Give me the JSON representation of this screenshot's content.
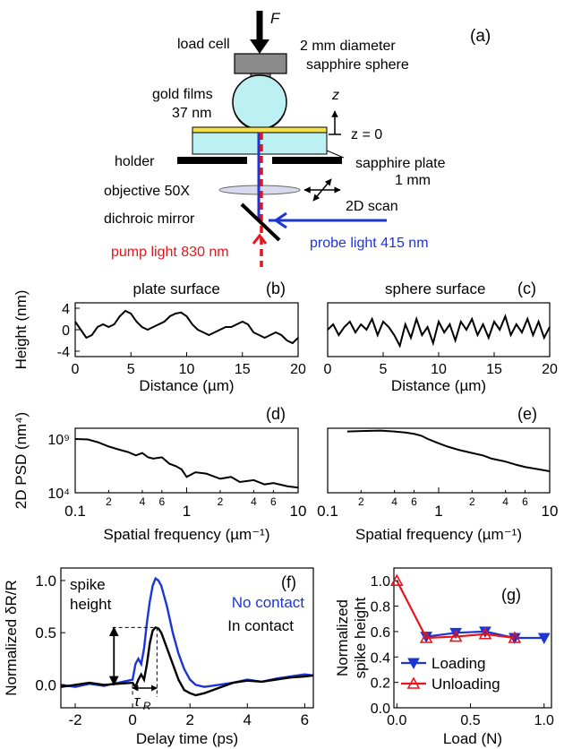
{
  "figure": {
    "panel_a": {
      "label": "(a)",
      "force": "F",
      "load_cell": "load cell",
      "sphere_line1": "2 mm diameter",
      "sphere_line2": "sapphire sphere",
      "gold_line1": "gold films",
      "gold_line2": "37 nm",
      "z_axis": "z",
      "z_zero": "z = 0",
      "holder": "holder",
      "plate_line1": "sapphire plate",
      "plate_line2": "1 mm",
      "objective": "objective 50X",
      "scan": "2D scan",
      "mirror": "dichroic mirror",
      "pump": "pump light  830 nm",
      "probe": "probe light 415 nm",
      "colors": {
        "pump": "#e8141b",
        "probe": "#1c35d6",
        "gold": "#f3e24a",
        "sapphire": "#bdf0f3"
      }
    }
  },
  "chart_data": [
    {
      "panel": "(b)",
      "type": "line",
      "title": "plate surface",
      "xlabel": "Distance (µm)",
      "ylabel": "Height (nm)",
      "xlim": [
        0,
        20
      ],
      "ylim": [
        -5,
        5
      ],
      "xticks": [
        "0",
        "5",
        "10",
        "15",
        "20"
      ],
      "yticks": [
        "4",
        "0",
        "-4"
      ],
      "series": [
        {
          "x": [
            0,
            0.5,
            1,
            1.5,
            2,
            2.5,
            3,
            3.5,
            4,
            4.5,
            5,
            5.5,
            6,
            6.5,
            7,
            7.5,
            8,
            8.5,
            9,
            9.5,
            10,
            10.5,
            11,
            11.5,
            12,
            12.5,
            13,
            13.5,
            14,
            14.5,
            15,
            15.5,
            16,
            16.5,
            17,
            17.5,
            18,
            18.5,
            19,
            19.5,
            20
          ],
          "y": [
            1.5,
            0,
            -1.5,
            -1,
            0.5,
            1,
            0.5,
            1,
            2.5,
            3.5,
            3,
            1.5,
            0.5,
            0,
            0.5,
            1,
            1.5,
            2.5,
            3,
            3.2,
            2.5,
            1,
            0,
            -0.5,
            -1,
            -0.5,
            0,
            0.5,
            0.5,
            1,
            1.5,
            1,
            -0.5,
            -1,
            -1.5,
            -1,
            -0.5,
            -1,
            -2,
            -2.5,
            -1.5
          ]
        }
      ]
    },
    {
      "panel": "(c)",
      "type": "line",
      "title": "sphere surface",
      "xlabel": "Distance (µm)",
      "ylabel": "",
      "xlim": [
        0,
        20
      ],
      "ylim": [
        -5,
        5
      ],
      "xticks": [
        "0",
        "5",
        "10",
        "15",
        "20"
      ],
      "yticks": [],
      "series": [
        {
          "x": [
            0,
            0.5,
            1,
            1.5,
            2,
            2.5,
            3,
            3.5,
            4,
            4.5,
            5,
            5.5,
            6,
            6.5,
            7,
            7.5,
            8,
            8.5,
            9,
            9.5,
            10,
            10.5,
            11,
            11.5,
            12,
            12.5,
            13,
            13.5,
            14,
            14.5,
            15,
            15.5,
            16,
            16.5,
            17,
            17.5,
            18,
            18.5,
            19,
            19.5,
            20
          ],
          "y": [
            0,
            1,
            -1,
            0.5,
            1.5,
            -0.5,
            1,
            0,
            2,
            -1,
            1.5,
            0.5,
            -1,
            -3,
            1,
            -1.5,
            2,
            -1,
            0.5,
            -2.5,
            1.5,
            -0.5,
            1,
            -2,
            1.5,
            0,
            2,
            -1,
            1,
            -1.5,
            1.5,
            0,
            2.5,
            -1,
            1,
            -0.5,
            2,
            -1,
            1.5,
            -1.5,
            0.5
          ]
        }
      ]
    },
    {
      "panel": "(d)",
      "type": "line",
      "title": "",
      "xlabel": "Spatial frequency (µm⁻¹)",
      "ylabel": "2D PSD (nm⁴)",
      "xscale": "log",
      "yscale": "log",
      "xlim": [
        0.1,
        10
      ],
      "ylim": [
        10000,
        10000000000
      ],
      "xticks_major": [
        "0.1",
        "1",
        "10"
      ],
      "xticks_minor": [
        "2",
        "4",
        "6",
        "2",
        "4",
        "6"
      ],
      "yticks": [
        "10⁹",
        "10⁴"
      ],
      "series": [
        {
          "x": [
            0.1,
            0.13,
            0.16,
            0.2,
            0.25,
            0.3,
            0.35,
            0.4,
            0.45,
            0.5,
            0.6,
            0.7,
            0.8,
            0.9,
            1,
            1.2,
            1.5,
            2,
            2.5,
            3,
            4,
            5,
            6,
            8,
            10
          ],
          "y": [
            1000000000,
            900000000,
            500000000,
            200000000,
            100000000,
            60000000,
            30000000,
            50000000,
            20000000,
            15000000,
            20000000,
            5000000,
            3000000,
            1500000,
            300000,
            800000,
            600000,
            200000,
            300000,
            100000,
            150000,
            60000,
            80000,
            40000,
            30000
          ]
        }
      ]
    },
    {
      "panel": "(e)",
      "type": "line",
      "title": "",
      "xlabel": "Spatial frequency (µm⁻¹)",
      "ylabel": "",
      "xscale": "log",
      "yscale": "log",
      "xlim": [
        0.1,
        10
      ],
      "ylim": [
        10000,
        10000000000
      ],
      "xticks_major": [
        "0.1",
        "1",
        "10"
      ],
      "xticks_minor": [
        "2",
        "4",
        "6",
        "2",
        "4",
        "6"
      ],
      "yticks": [],
      "series": [
        {
          "x": [
            0.15,
            0.2,
            0.3,
            0.4,
            0.5,
            0.6,
            0.7,
            0.8,
            1,
            1.2,
            1.5,
            2,
            2.5,
            3,
            4,
            5,
            6,
            8,
            10
          ],
          "y": [
            5000000000,
            5500000000,
            6000000000,
            5000000000,
            4000000000,
            3000000000,
            2000000000,
            1000000000,
            400000000,
            200000000,
            100000000,
            50000000,
            30000000,
            15000000,
            8000000,
            4000000,
            2500000,
            1500000,
            1000000
          ]
        }
      ]
    },
    {
      "panel": "(f)",
      "type": "line",
      "title": "",
      "xlabel": "Delay time (ps)",
      "ylabel": "Normalized δR/R",
      "xlim": [
        -2.5,
        6.3
      ],
      "ylim": [
        -0.22,
        1.12
      ],
      "xticks": [
        "-2",
        "0",
        "2",
        "4",
        "6"
      ],
      "yticks": [
        "0.0",
        "0.5",
        "1.0"
      ],
      "annotations": {
        "spike_height_line1": "spike",
        "spike_height_line2": "height",
        "tau": "τ",
        "tau_sub": "R"
      },
      "series": [
        {
          "name": "No contact",
          "color": "#1c35d6",
          "x": [
            -2.5,
            -2,
            -1.5,
            -1,
            -0.5,
            0,
            0.1,
            0.2,
            0.3,
            0.4,
            0.5,
            0.6,
            0.7,
            0.8,
            0.9,
            1,
            1.2,
            1.4,
            1.6,
            1.8,
            2,
            2.2,
            2.5,
            3,
            3.5,
            4,
            4.5,
            5,
            5.5,
            6,
            6.3
          ],
          "y": [
            0,
            -0.02,
            0.01,
            -0.01,
            0.02,
            0.05,
            0.2,
            0.25,
            0.2,
            0.35,
            0.6,
            0.8,
            0.95,
            1.02,
            1.0,
            0.95,
            0.75,
            0.5,
            0.3,
            0.15,
            0.05,
            0,
            -0.02,
            0,
            0.02,
            0.05,
            0.03,
            0.06,
            0.08,
            0.1,
            0.09
          ]
        },
        {
          "name": "In contact",
          "color": "#000000",
          "x": [
            -2.5,
            -2,
            -1.5,
            -1,
            -0.5,
            0,
            0.1,
            0.2,
            0.3,
            0.4,
            0.5,
            0.6,
            0.7,
            0.8,
            0.9,
            1,
            1.2,
            1.4,
            1.6,
            1.8,
            2,
            2.2,
            2.5,
            3,
            3.5,
            4,
            4.5,
            5,
            5.5,
            6,
            6.3
          ],
          "y": [
            -0.02,
            0,
            0.02,
            0,
            0.01,
            0.02,
            -0.02,
            0.05,
            0.1,
            0.05,
            0.2,
            0.4,
            0.52,
            0.55,
            0.54,
            0.5,
            0.35,
            0.2,
            0.05,
            -0.05,
            -0.08,
            -0.1,
            -0.08,
            -0.03,
            0.02,
            0.04,
            0.03,
            0.05,
            0.07,
            0.08,
            0.09
          ]
        }
      ]
    },
    {
      "panel": "(g)",
      "type": "line",
      "title": "",
      "xlabel": "Load (N)",
      "ylabel_line1": "Normalized",
      "ylabel_line2": "spike height",
      "xlim": [
        -0.02,
        1.05
      ],
      "ylim": [
        0,
        1.1
      ],
      "xticks": [
        "0.0",
        "0.5",
        "1.0"
      ],
      "yticks": [
        "0.0",
        "0.2",
        "0.4",
        "0.6",
        "0.8",
        "1.0"
      ],
      "series": [
        {
          "name": "Loading",
          "color": "#1c35d6",
          "marker": "filled-triangle-down",
          "x": [
            0.2,
            0.4,
            0.6,
            0.8,
            1.0
          ],
          "y": [
            0.56,
            0.59,
            0.6,
            0.55,
            0.55
          ]
        },
        {
          "name": "Unloading",
          "color": "#e8141b",
          "marker": "open-triangle-up",
          "x": [
            0.0,
            0.2,
            0.4,
            0.6,
            0.8
          ],
          "y": [
            1.0,
            0.55,
            0.56,
            0.58,
            0.55
          ]
        }
      ]
    }
  ]
}
